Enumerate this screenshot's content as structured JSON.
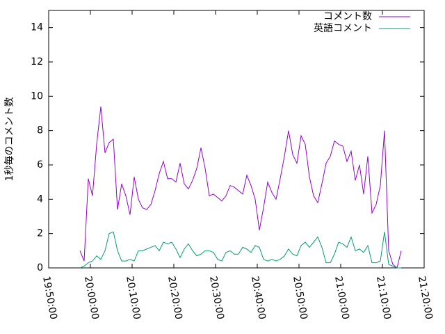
{
  "chart_data": {
    "type": "line",
    "ylabel": "1秒毎のコメント数",
    "x": [
      "19:57:30",
      "19:58:30",
      "19:59:30",
      "20:00:30",
      "20:01:30",
      "20:02:30",
      "20:03:30",
      "20:04:30",
      "20:05:30",
      "20:06:30",
      "20:07:30",
      "20:08:30",
      "20:09:30",
      "20:10:30",
      "20:11:30",
      "20:12:30",
      "20:13:30",
      "20:14:30",
      "20:15:30",
      "20:16:30",
      "20:17:30",
      "20:18:30",
      "20:19:30",
      "20:20:30",
      "20:21:30",
      "20:22:30",
      "20:23:30",
      "20:24:30",
      "20:25:30",
      "20:26:30",
      "20:27:30",
      "20:28:30",
      "20:29:30",
      "20:30:30",
      "20:31:30",
      "20:32:30",
      "20:33:30",
      "20:34:30",
      "20:35:30",
      "20:36:30",
      "20:37:30",
      "20:38:30",
      "20:39:30",
      "20:40:30",
      "20:41:30",
      "20:42:30",
      "20:43:30",
      "20:44:30",
      "20:45:30",
      "20:46:30",
      "20:47:30",
      "20:48:30",
      "20:49:30",
      "20:50:30",
      "20:51:30",
      "20:52:30",
      "20:53:30",
      "20:54:30",
      "20:55:30",
      "20:56:30",
      "20:57:30",
      "20:58:30",
      "20:59:30",
      "21:00:30",
      "21:01:30",
      "21:02:30",
      "21:03:30",
      "21:04:30",
      "21:05:30",
      "21:06:30",
      "21:07:30",
      "21:08:30",
      "21:09:30",
      "21:10:30",
      "21:11:30",
      "21:12:30",
      "21:13:30",
      "21:14:30"
    ],
    "series": [
      {
        "name": "コメント数",
        "color": "#9400d3",
        "values": [
          1.0,
          0.4,
          5.2,
          4.2,
          7.2,
          9.4,
          6.7,
          7.3,
          7.5,
          3.4,
          4.9,
          4.2,
          3.1,
          5.3,
          4.0,
          3.5,
          3.4,
          3.7,
          4.5,
          5.5,
          6.2,
          5.2,
          5.2,
          5.0,
          6.1,
          4.9,
          4.6,
          5.1,
          5.8,
          7.0,
          5.8,
          4.2,
          4.3,
          4.1,
          3.9,
          4.2,
          4.8,
          4.7,
          4.5,
          4.3,
          5.4,
          4.8,
          4.0,
          2.2,
          3.5,
          5.0,
          4.4,
          4.0,
          5.2,
          6.5,
          8.0,
          6.6,
          6.1,
          7.7,
          7.2,
          5.3,
          4.2,
          3.8,
          4.9,
          6.1,
          6.5,
          7.4,
          7.2,
          7.1,
          6.2,
          6.8,
          5.1,
          6.0,
          4.3,
          6.5,
          3.2,
          3.7,
          4.8,
          8.0,
          1.0,
          0.2,
          0,
          1.0
        ]
      },
      {
        "name": "英語コメント",
        "color": "#009e73",
        "values": [
          0,
          0.1,
          0.3,
          0.4,
          0.7,
          0.5,
          1.0,
          2.0,
          2.1,
          1.0,
          0.4,
          0.4,
          0.5,
          0.4,
          1.0,
          1.0,
          1.1,
          1.2,
          1.3,
          1.0,
          1.5,
          1.4,
          1.5,
          1.1,
          0.6,
          1.1,
          1.4,
          1.0,
          0.7,
          0.8,
          1.0,
          1.0,
          0.9,
          0.5,
          0.4,
          0.9,
          1.0,
          0.8,
          0.8,
          1.2,
          1.1,
          0.9,
          1.3,
          1.2,
          0.5,
          0.4,
          0.5,
          0.4,
          0.5,
          0.7,
          1.1,
          0.8,
          0.7,
          1.3,
          1.5,
          1.2,
          1.5,
          1.8,
          1.2,
          0.3,
          0.3,
          0.8,
          1.5,
          1.4,
          1.2,
          1.8,
          1.0,
          1.1,
          0.9,
          1.3,
          0.3,
          0.3,
          0.4,
          2.1,
          0.2,
          0.1,
          0,
          0
        ]
      }
    ],
    "xlim": [
      "19:50:00",
      "21:20:00"
    ],
    "xticks": [
      "19:50:00",
      "20:00:00",
      "20:10:00",
      "20:20:00",
      "20:30:00",
      "20:40:00",
      "20:50:00",
      "21:00:00",
      "21:10:00",
      "21:20:00"
    ],
    "ylim": [
      0,
      15
    ],
    "yticks": [
      0,
      2,
      4,
      6,
      8,
      10,
      12,
      14
    ],
    "legend": "top-right"
  }
}
